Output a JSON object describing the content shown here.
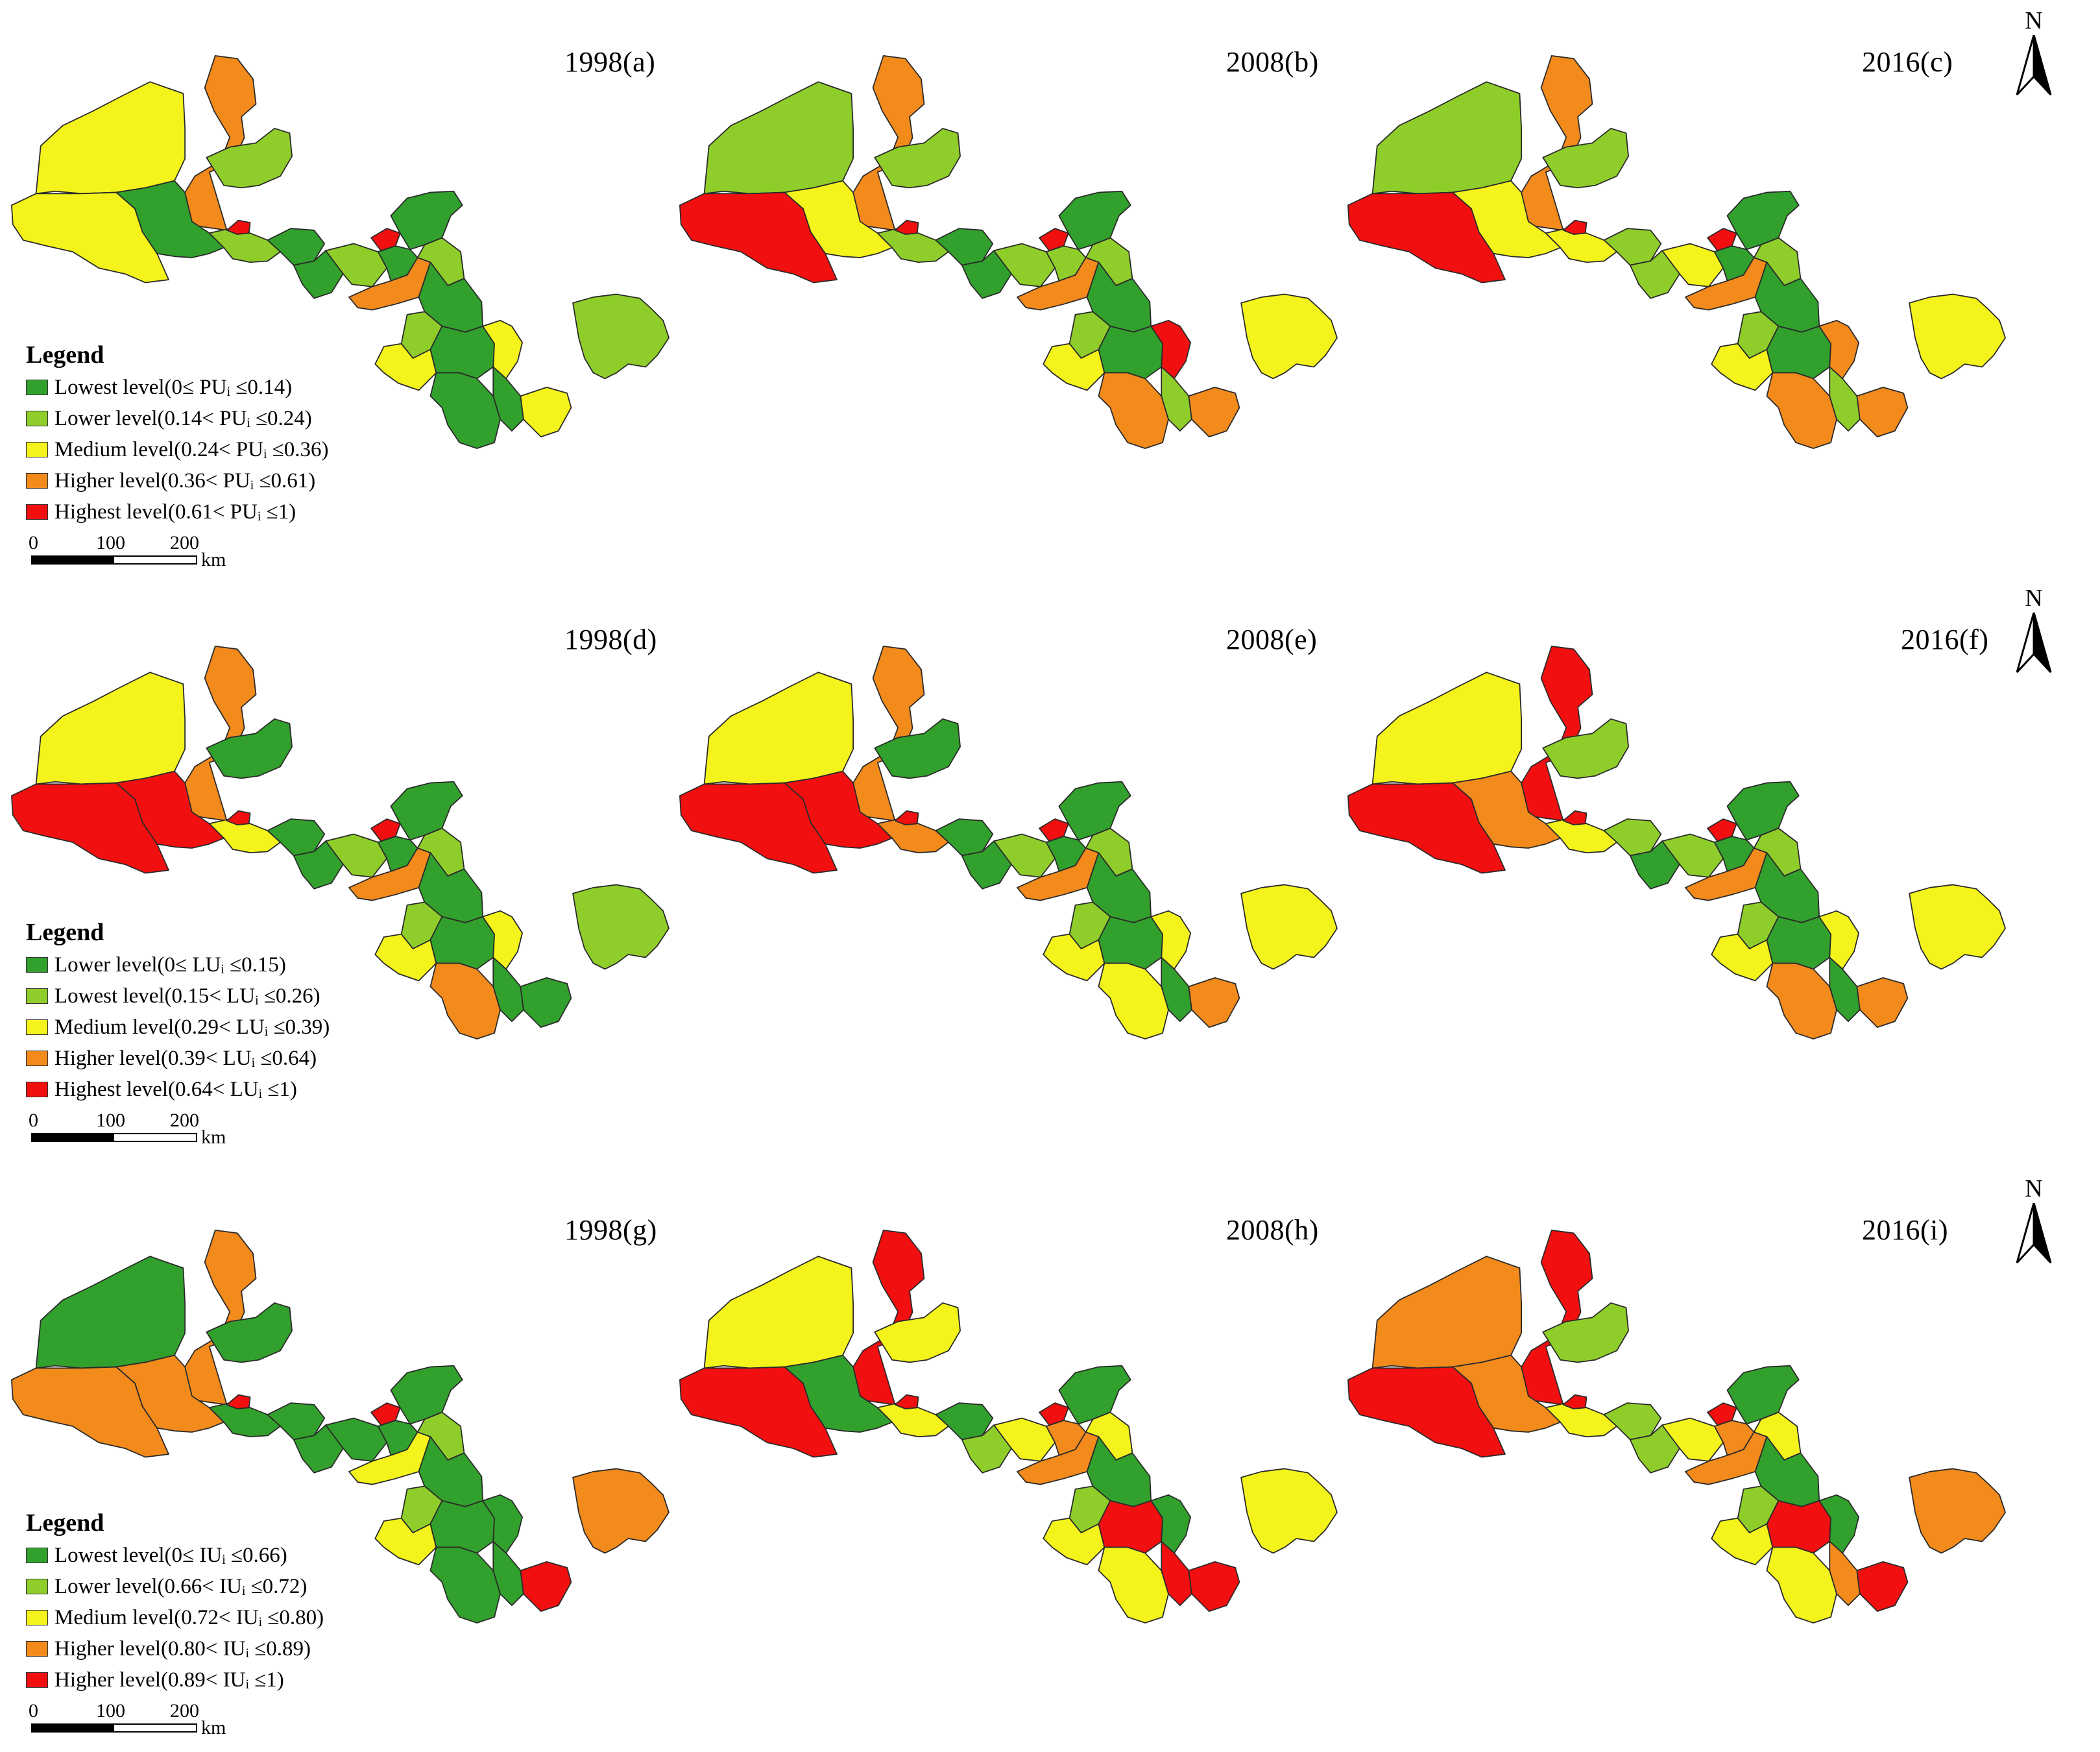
{
  "colors": {
    "lowest": "#31a02c",
    "lower": "#8fce2a",
    "medium": "#f4f41c",
    "higher": "#f28a1c",
    "highest": "#f20f0f",
    "border": "#2a2a2a"
  },
  "panels": [
    {
      "label": "1998(a)",
      "fills": [
        "higher",
        "medium",
        "lower",
        "medium",
        "lowest",
        "lower",
        "highest",
        "lowest",
        "lowest",
        "lower",
        "highest",
        "lowest",
        "higher",
        "lowest",
        "lower",
        "lowest",
        "lower",
        "medium",
        "lowest",
        "medium",
        "lowest",
        "lowest",
        "medium",
        "lower"
      ]
    },
    {
      "label": "2008(b)",
      "fills": [
        "higher",
        "lower",
        "lower",
        "highest",
        "medium",
        "lower",
        "highest",
        "lowest",
        "lowest",
        "lower",
        "highest",
        "lower",
        "higher",
        "lowest",
        "lower",
        "lowest",
        "lower",
        "medium",
        "lowest",
        "highest",
        "higher",
        "lower",
        "higher",
        "medium"
      ]
    },
    {
      "label": "2016(c)",
      "fills": [
        "higher",
        "lower",
        "lower",
        "highest",
        "medium",
        "medium",
        "highest",
        "lower",
        "lower",
        "medium",
        "highest",
        "lowest",
        "higher",
        "lowest",
        "lower",
        "lowest",
        "lower",
        "medium",
        "lowest",
        "higher",
        "higher",
        "lower",
        "higher",
        "medium"
      ]
    },
    {
      "label": "1998(d)",
      "fills": [
        "higher",
        "medium",
        "lowest",
        "highest",
        "highest",
        "medium",
        "highest",
        "lowest",
        "lowest",
        "lower",
        "highest",
        "lowest",
        "higher",
        "lowest",
        "lower",
        "lowest",
        "lower",
        "medium",
        "lowest",
        "medium",
        "higher",
        "lowest",
        "lowest",
        "lower"
      ]
    },
    {
      "label": "2008(e)",
      "fills": [
        "higher",
        "medium",
        "lowest",
        "highest",
        "highest",
        "higher",
        "highest",
        "lowest",
        "lowest",
        "lower",
        "highest",
        "lowest",
        "higher",
        "lowest",
        "lower",
        "lowest",
        "lower",
        "medium",
        "lowest",
        "medium",
        "medium",
        "lowest",
        "higher",
        "medium"
      ]
    },
    {
      "label": "2016(f)",
      "fills": [
        "highest",
        "medium",
        "lower",
        "highest",
        "higher",
        "medium",
        "highest",
        "lower",
        "lowest",
        "lower",
        "highest",
        "lowest",
        "higher",
        "lowest",
        "lower",
        "lowest",
        "lower",
        "medium",
        "lowest",
        "medium",
        "higher",
        "lowest",
        "higher",
        "medium"
      ]
    },
    {
      "label": "1998(g)",
      "fills": [
        "higher",
        "lowest",
        "lowest",
        "higher",
        "higher",
        "lowest",
        "highest",
        "lowest",
        "lowest",
        "lowest",
        "highest",
        "lowest",
        "medium",
        "lowest",
        "lower",
        "lowest",
        "lower",
        "medium",
        "lowest",
        "lowest",
        "lowest",
        "lowest",
        "highest",
        "higher"
      ]
    },
    {
      "label": "2008(h)",
      "fills": [
        "highest",
        "medium",
        "medium",
        "highest",
        "lowest",
        "medium",
        "highest",
        "lowest",
        "lower",
        "medium",
        "highest",
        "higher",
        "higher",
        "lowest",
        "medium",
        "lowest",
        "lower",
        "medium",
        "highest",
        "lowest",
        "medium",
        "highest",
        "highest",
        "medium"
      ]
    },
    {
      "label": "2016(i)",
      "fills": [
        "highest",
        "higher",
        "lower",
        "highest",
        "higher",
        "medium",
        "highest",
        "lower",
        "lower",
        "medium",
        "highest",
        "higher",
        "higher",
        "lowest",
        "medium",
        "lowest",
        "lower",
        "medium",
        "highest",
        "lowest",
        "medium",
        "higher",
        "highest",
        "higher"
      ]
    }
  ],
  "north_label": "N",
  "legends": [
    {
      "title": "Legend",
      "items": [
        {
          "text": "Lowest level(0≤ PUᵢ ≤0.14)",
          "color": "lowest"
        },
        {
          "text": "Lower level(0.14< PUᵢ ≤0.24)",
          "color": "lower"
        },
        {
          "text": "Medium level(0.24< PUᵢ ≤0.36)",
          "color": "medium"
        },
        {
          "text": "Higher level(0.36< PUᵢ ≤0.61)",
          "color": "higher"
        },
        {
          "text": "Highest level(0.61< PUᵢ ≤1)",
          "color": "highest"
        }
      ]
    },
    {
      "title": "Legend",
      "items": [
        {
          "text": "Lower level(0≤ LUᵢ ≤0.15)",
          "color": "lowest"
        },
        {
          "text": "Lowest level(0.15< LUᵢ ≤0.26)",
          "color": "lower"
        },
        {
          "text": "Medium level(0.29< LUᵢ ≤0.39)",
          "color": "medium"
        },
        {
          "text": "Higher level(0.39< LUᵢ ≤0.64)",
          "color": "higher"
        },
        {
          "text": "Highest level(0.64< LUᵢ ≤1)",
          "color": "highest"
        }
      ]
    },
    {
      "title": "Legend",
      "items": [
        {
          "text": "Lowest level(0≤ IUᵢ ≤0.66)",
          "color": "lowest"
        },
        {
          "text": "Lower level(0.66< IUᵢ ≤0.72)",
          "color": "lower"
        },
        {
          "text": "Medium level(0.72< IUᵢ ≤0.80)",
          "color": "medium"
        },
        {
          "text": "Higher level(0.80< IUᵢ ≤0.89)",
          "color": "higher"
        },
        {
          "text": "Higher level(0.89< IUᵢ ≤1)",
          "color": "highest"
        }
      ]
    }
  ],
  "scalebar": {
    "ticks": [
      "0",
      "100",
      "200"
    ],
    "unit": "km"
  }
}
